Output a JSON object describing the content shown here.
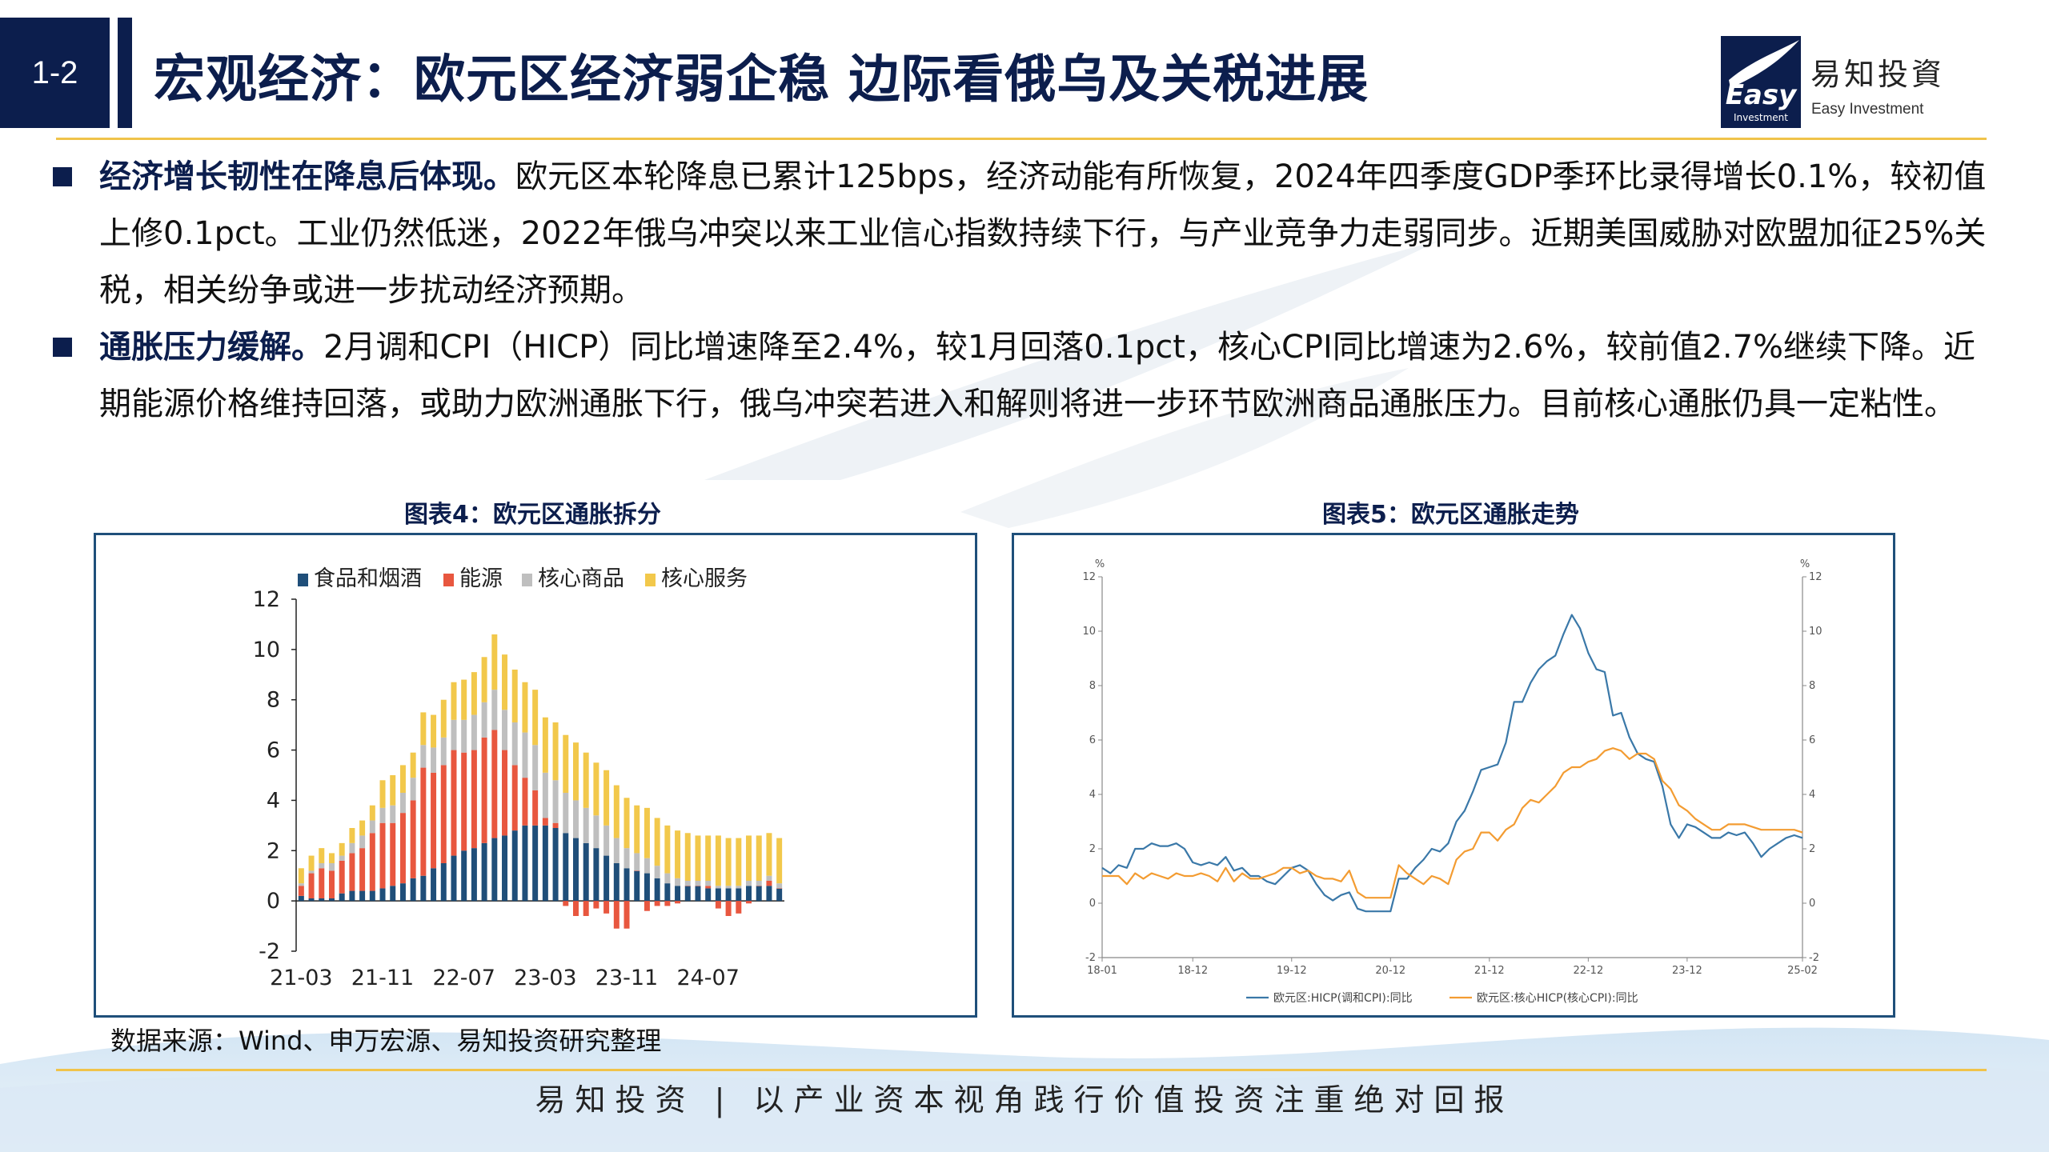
{
  "header": {
    "badge": "1-2",
    "title": "宏观经济：欧元区经济弱企稳 边际看俄乌及关税进展",
    "logo_cn": "易知投資",
    "logo_en": "Easy Investment",
    "logo_mark_top": "Easy",
    "logo_mark_bottom": "Investment"
  },
  "bullets": [
    {
      "lead": "经济增长韧性在降息后体现。",
      "body": "欧元区本轮降息已累计125bps，经济动能有所恢复，2024年四季度GDP季环比录得增长0.1%，较初值上修0.1pct。工业仍然低迷，2022年俄乌冲突以来工业信心指数持续下行，与产业竞争力走弱同步。近期美国威胁对欧盟加征25%关税，相关纷争或进一步扰动经济预期。"
    },
    {
      "lead": "通胀压力缓解。",
      "body": "2月调和CPI（HICP）同比增速降至2.4%，较1月回落0.1pct，核心CPI同比增速为2.6%，较前值2.7%继续下降。近期能源价格维持回落，或助力欧洲通胀下行，俄乌冲突若进入和解则将进一步环节欧洲商品通胀压力。目前核心通胀仍具一定粘性。"
    }
  ],
  "figure4": {
    "title": "图表4：欧元区通胀拆分"
  },
  "figure5": {
    "title": "图表5：欧元区通胀走势"
  },
  "source": "数据来源：Wind、申万宏源、易知投资研究整理",
  "footer": "易知投资 | 以产业资本视角践行价值投资注重绝对回报",
  "chart_data": [
    {
      "type": "bar",
      "stacked": true,
      "categories": [
        "21-03",
        "21-04",
        "21-05",
        "21-06",
        "21-07",
        "21-08",
        "21-09",
        "21-10",
        "21-11",
        "21-12",
        "22-01",
        "22-02",
        "22-03",
        "22-04",
        "22-05",
        "22-06",
        "22-07",
        "22-08",
        "22-09",
        "22-10",
        "22-11",
        "22-12",
        "23-01",
        "23-02",
        "23-03",
        "23-04",
        "23-05",
        "23-06",
        "23-07",
        "23-08",
        "23-09",
        "23-10",
        "23-11",
        "23-12",
        "24-01",
        "24-02",
        "24-03",
        "24-04",
        "24-05",
        "24-06",
        "24-07",
        "24-08",
        "24-09",
        "24-10",
        "24-11",
        "24-12",
        "25-01",
        "25-02"
      ],
      "tick_labels": [
        "21-03",
        "21-11",
        "22-07",
        "23-03",
        "23-11",
        "24-07"
      ],
      "ylim": [
        -2,
        12
      ],
      "yticks": [
        -2,
        0,
        2,
        4,
        6,
        8,
        10,
        12
      ],
      "legend_position": "top",
      "colors": {
        "food": "#1f4e79",
        "energy": "#e8573f",
        "core_goods": "#bfbfbf",
        "core_services": "#f2c84b"
      },
      "series": [
        {
          "name": "食品和烟酒",
          "values": [
            0.2,
            0.1,
            0.1,
            0.1,
            0.3,
            0.4,
            0.4,
            0.4,
            0.5,
            0.6,
            0.7,
            0.9,
            1.0,
            1.3,
            1.5,
            1.8,
            2.0,
            2.1,
            2.3,
            2.5,
            2.6,
            2.8,
            3.0,
            3.0,
            3.0,
            2.9,
            2.7,
            2.5,
            2.3,
            2.1,
            1.8,
            1.5,
            1.3,
            1.2,
            1.1,
            0.9,
            0.7,
            0.6,
            0.6,
            0.6,
            0.5,
            0.5,
            0.5,
            0.5,
            0.6,
            0.6,
            0.6,
            0.5
          ]
        },
        {
          "name": "能源",
          "values": [
            0.4,
            1.0,
            1.2,
            1.1,
            1.3,
            1.5,
            1.7,
            2.3,
            2.6,
            2.5,
            2.8,
            3.1,
            4.3,
            3.8,
            3.9,
            4.2,
            3.9,
            3.9,
            4.2,
            4.3,
            3.4,
            2.6,
            1.9,
            1.4,
            0.3,
            0.2,
            -0.2,
            -0.6,
            -0.6,
            -0.3,
            -0.5,
            -1.1,
            -1.1,
            0.0,
            -0.4,
            -0.2,
            -0.2,
            -0.1,
            0.0,
            0.0,
            0.1,
            -0.3,
            -0.6,
            -0.5,
            -0.1,
            0.0,
            0.2,
            0.0
          ]
        },
        {
          "name": "核心商品",
          "values": [
            0.1,
            0.1,
            0.2,
            0.3,
            0.2,
            0.4,
            0.5,
            0.5,
            0.6,
            0.7,
            0.8,
            0.9,
            0.9,
            1.0,
            1.1,
            1.2,
            1.3,
            1.4,
            1.4,
            1.6,
            1.6,
            1.7,
            1.8,
            1.8,
            1.8,
            1.7,
            1.6,
            1.5,
            1.4,
            1.3,
            1.2,
            1.0,
            0.8,
            0.7,
            0.6,
            0.5,
            0.4,
            0.3,
            0.2,
            0.2,
            0.2,
            0.1,
            0.1,
            0.1,
            0.2,
            0.2,
            0.2,
            0.2
          ]
        },
        {
          "name": "核心服务",
          "values": [
            0.6,
            0.6,
            0.6,
            0.4,
            0.5,
            0.6,
            0.6,
            0.6,
            1.1,
            1.2,
            1.1,
            1.0,
            1.3,
            1.3,
            1.5,
            1.5,
            1.6,
            1.7,
            1.8,
            2.2,
            2.2,
            2.1,
            2.0,
            2.2,
            2.2,
            2.3,
            2.3,
            2.3,
            2.2,
            2.1,
            2.2,
            2.1,
            2.0,
            1.9,
            2.0,
            1.9,
            1.9,
            1.9,
            1.9,
            1.8,
            1.8,
            2.0,
            1.9,
            1.9,
            1.8,
            1.8,
            1.7,
            1.8
          ]
        }
      ]
    },
    {
      "type": "line",
      "x_start": "18-01",
      "x_end": "25-02",
      "tick_labels": [
        "18-01",
        "18-12",
        "19-12",
        "20-12",
        "21-12",
        "22-12",
        "23-12",
        "25-02"
      ],
      "ylim": [
        -2,
        12
      ],
      "yticks": [
        -2,
        0,
        2,
        4,
        6,
        8,
        10,
        12
      ],
      "yunit_left": "%",
      "yunit_right": "%",
      "legend_position": "bottom",
      "series": [
        {
          "name": "欧元区:HICP(调和CPI):同比",
          "color": "#3a78a8",
          "values": [
            1.3,
            1.1,
            1.4,
            1.3,
            2.0,
            2.0,
            2.2,
            2.1,
            2.1,
            2.2,
            2.0,
            1.5,
            1.4,
            1.5,
            1.4,
            1.7,
            1.2,
            1.3,
            1.0,
            1.0,
            0.8,
            0.7,
            1.0,
            1.3,
            1.4,
            1.2,
            0.7,
            0.3,
            0.1,
            0.3,
            0.4,
            -0.2,
            -0.3,
            -0.3,
            -0.3,
            -0.3,
            0.9,
            0.9,
            1.3,
            1.6,
            2.0,
            1.9,
            2.2,
            3.0,
            3.4,
            4.1,
            4.9,
            5.0,
            5.1,
            5.9,
            7.4,
            7.4,
            8.1,
            8.6,
            8.9,
            9.1,
            9.9,
            10.6,
            10.1,
            9.2,
            8.6,
            8.5,
            6.9,
            7.0,
            6.1,
            5.5,
            5.3,
            5.2,
            4.3,
            2.9,
            2.4,
            2.9,
            2.8,
            2.6,
            2.4,
            2.4,
            2.6,
            2.5,
            2.6,
            2.2,
            1.7,
            2.0,
            2.2,
            2.4,
            2.5,
            2.4
          ]
        },
        {
          "name": "欧元区:核心HICP(核心CPI):同比",
          "color": "#f39c32",
          "values": [
            1.0,
            1.0,
            1.0,
            0.7,
            1.1,
            0.9,
            1.1,
            1.0,
            0.9,
            1.1,
            1.0,
            1.0,
            1.1,
            1.0,
            0.8,
            1.3,
            0.8,
            1.1,
            0.9,
            0.9,
            1.0,
            1.1,
            1.3,
            1.3,
            1.1,
            1.2,
            1.0,
            0.9,
            0.9,
            0.8,
            1.2,
            0.4,
            0.2,
            0.2,
            0.2,
            0.2,
            1.4,
            1.1,
            0.9,
            0.7,
            1.0,
            0.9,
            0.7,
            1.6,
            1.9,
            2.0,
            2.6,
            2.6,
            2.3,
            2.7,
            2.9,
            3.5,
            3.8,
            3.7,
            4.0,
            4.3,
            4.8,
            5.0,
            5.0,
            5.2,
            5.3,
            5.6,
            5.7,
            5.6,
            5.3,
            5.5,
            5.5,
            5.3,
            4.5,
            4.2,
            3.6,
            3.4,
            3.1,
            2.9,
            2.7,
            2.7,
            2.9,
            2.9,
            2.9,
            2.8,
            2.7,
            2.7,
            2.7,
            2.7,
            2.7,
            2.6
          ]
        }
      ]
    }
  ]
}
